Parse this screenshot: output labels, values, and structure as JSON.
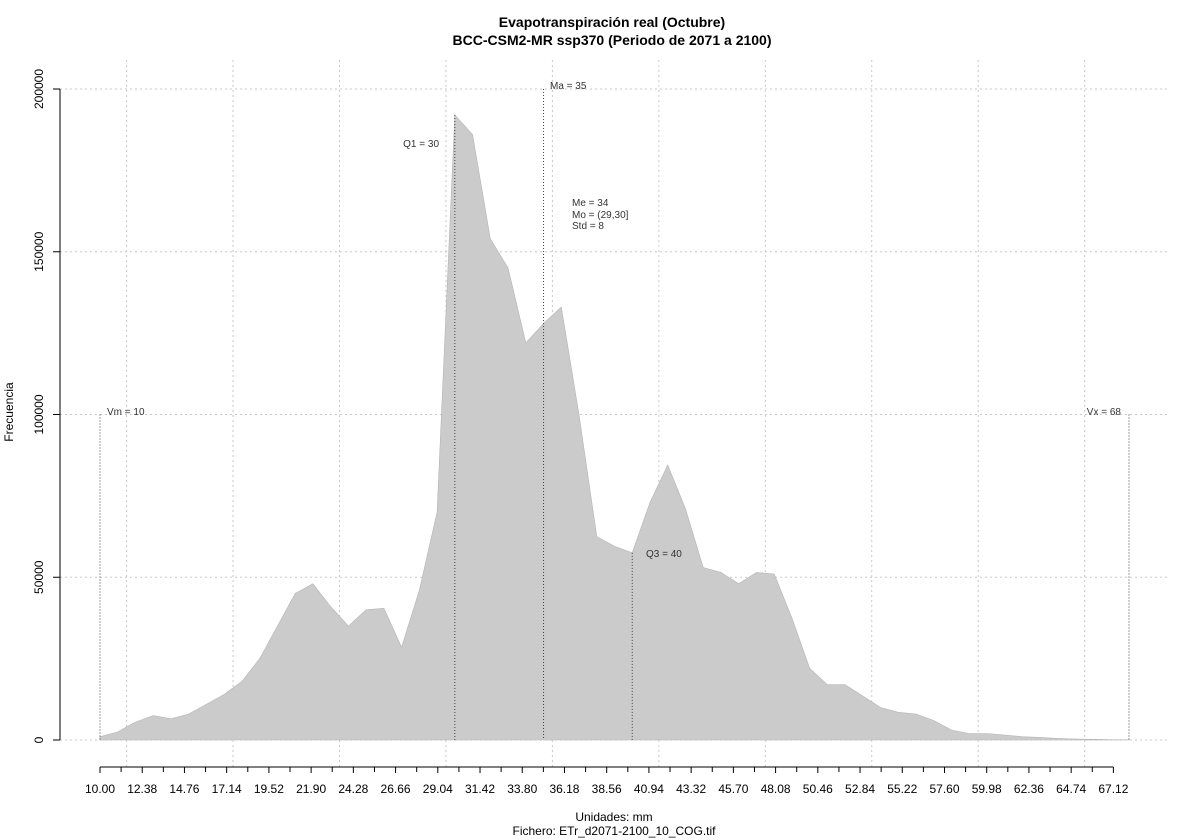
{
  "chart_data": {
    "type": "area",
    "title": "Evapotranspiración real (Octubre)",
    "subtitle": "BCC-CSM2-MR ssp370 (Periodo de 2071 a 2100)",
    "xlabel": "Unidades: mm",
    "caption": "Fichero: ETr_d2071-2100_10_COG.tif",
    "ylabel": "Frecuencia",
    "xlim": [
      10,
      68
    ],
    "ylim": [
      0,
      200000
    ],
    "grid": true,
    "fill_color": "#cbcbcb",
    "x_ticks": [
      10.0,
      12.38,
      14.76,
      17.14,
      19.52,
      21.9,
      24.28,
      26.66,
      29.04,
      31.42,
      33.8,
      36.18,
      38.56,
      40.94,
      43.32,
      45.7,
      48.08,
      50.46,
      52.84,
      55.22,
      57.6,
      59.98,
      62.36,
      64.74,
      67.12
    ],
    "x_tick_labels": [
      "10.00",
      "12.38",
      "14.76",
      "17.14",
      "19.52",
      "21.90",
      "24.28",
      "26.66",
      "29.04",
      "31.42",
      "33.80",
      "36.18",
      "38.56",
      "40.94",
      "43.32",
      "45.70",
      "48.08",
      "50.46",
      "52.84",
      "55.22",
      "57.60",
      "59.98",
      "62.36",
      "64.74",
      "67.12"
    ],
    "y_ticks": [
      0,
      50000,
      100000,
      150000,
      200000
    ],
    "y_tick_labels": [
      "0",
      "50000",
      "100000",
      "150000",
      "200000"
    ],
    "x": [
      10,
      11,
      12,
      13,
      14,
      15,
      16,
      17,
      18,
      19,
      20,
      21,
      22,
      23,
      24,
      25,
      26,
      27,
      28,
      29,
      30,
      31,
      32,
      33,
      34,
      35,
      36,
      37,
      38,
      39,
      40,
      41,
      42,
      43,
      44,
      45,
      46,
      47,
      48,
      49,
      50,
      51,
      52,
      53,
      54,
      55,
      56,
      57,
      58,
      59,
      60,
      61,
      62,
      63,
      64,
      65,
      66,
      67,
      68
    ],
    "values": [
      1000,
      2500,
      5500,
      7500,
      6500,
      8000,
      11000,
      14000,
      18000,
      25000,
      35000,
      45000,
      48000,
      41000,
      35000,
      40000,
      40500,
      28500,
      46000,
      70000,
      192000,
      186000,
      154000,
      145000,
      122000,
      128000,
      133000,
      100000,
      62500,
      59500,
      57500,
      73000,
      84500,
      71000,
      53000,
      51500,
      48000,
      51500,
      51000,
      37500,
      22000,
      17000,
      17000,
      13500,
      10000,
      8500,
      8000,
      6000,
      3000,
      2000,
      2000,
      1500,
      1000,
      800,
      500,
      300,
      200,
      100,
      50
    ],
    "annotations": {
      "vm": {
        "label": "Vm = 10",
        "x": 10,
        "y": 100000
      },
      "vx": {
        "label": "Vx = 68",
        "x": 68,
        "y": 100000
      },
      "q1": {
        "label": "Q1 = 30",
        "x": 30,
        "y": 192000
      },
      "ma": {
        "label": "Ma = 35",
        "x": 35,
        "y": 200000
      },
      "q3": {
        "label": "Q3 = 40",
        "x": 40,
        "y": 57500
      },
      "stats": [
        "Me = 34",
        "Mo = (29,30]",
        "Std = 8"
      ]
    }
  }
}
